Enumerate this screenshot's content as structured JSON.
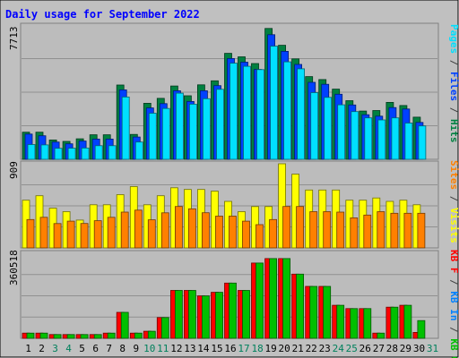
{
  "chart_data": {
    "type": "bar",
    "title": "Daily usage for September 2022",
    "categories": [
      "1",
      "2",
      "3",
      "4",
      "5",
      "6",
      "7",
      "8",
      "9",
      "10",
      "11",
      "12",
      "13",
      "14",
      "15",
      "16",
      "17",
      "18",
      "19",
      "20",
      "21",
      "22",
      "23",
      "24",
      "25",
      "26",
      "27",
      "28",
      "29",
      "30",
      "31"
    ],
    "weekend_days": [
      "3",
      "4",
      "10",
      "11",
      "17",
      "18",
      "24",
      "25",
      "31"
    ],
    "panels": {
      "top": {
        "max_label": "7713",
        "ylim": [
          0,
          7713
        ],
        "series": [
          {
            "name": "Hits",
            "color": "#008040",
            "values": [
              1560,
              1560,
              1110,
              1030,
              1180,
              1410,
              1410,
              4270,
              1430,
              3220,
              3500,
              4210,
              3650,
              4280,
              4510,
              6090,
              5890,
              5500,
              7520,
              6550,
              5770,
              4750,
              4580,
              4030,
              3370,
              2770,
              2800,
              3270,
              3090,
              2420,
              0
            ]
          },
          {
            "name": "Files",
            "color": "#0040ff",
            "values": [
              1450,
              1350,
              990,
              890,
              1050,
              1160,
              1160,
              3990,
              1280,
              2950,
              3200,
              3940,
              3320,
              3940,
              4230,
              5790,
              5580,
              5160,
              7160,
              6200,
              5450,
              4420,
              4310,
              3740,
              3120,
              2560,
              2480,
              2970,
              2890,
              2120,
              0
            ]
          },
          {
            "name": "Pages",
            "color": "#00e0ff",
            "values": [
              850,
              830,
              630,
              640,
              650,
              780,
              780,
              3580,
              990,
              2650,
              2920,
              3800,
              3170,
              3480,
              4020,
              5520,
              5340,
              5150,
              6500,
              5600,
              5200,
              3830,
              3560,
              3130,
              2740,
              2380,
              2260,
              2380,
              2080,
              1920,
              0
            ]
          }
        ]
      },
      "middle": {
        "max_label": "909",
        "ylim": [
          0,
          909
        ],
        "series": [
          {
            "name": "Visits",
            "color": "#ffff00",
            "values": [
              515,
              564,
              429,
              392,
              301,
              466,
              466,
              575,
              662,
              466,
              564,
              650,
              631,
              631,
              613,
              503,
              392,
              447,
              447,
              909,
              797,
              626,
              626,
              626,
              515,
              515,
              540,
              503,
              515,
              466,
              0
            ]
          },
          {
            "name": "Sites",
            "color": "#ff8000",
            "values": [
              307,
              331,
              263,
              289,
              264,
              294,
              331,
              387,
              408,
              304,
              379,
              448,
              423,
              380,
              343,
              343,
              289,
              251,
              307,
              448,
              448,
              392,
              392,
              387,
              325,
              355,
              392,
              374,
              374,
              374,
              0
            ]
          }
        ]
      },
      "bottom": {
        "max_label": "360518",
        "ylim": [
          0,
          360518
        ],
        "series": [
          {
            "name": "KB F",
            "color": "#ff0000",
            "values": [
              22000,
              22000,
              16000,
              16000,
              16000,
              16000,
              22000,
              110000,
              22000,
              30000,
              88000,
              203000,
              203000,
              180000,
              195000,
              234000,
              203000,
              319000,
              338000,
              338000,
              272000,
              220000,
              220000,
              140000,
              126000,
              126000,
              22000,
              132000,
              140000,
              25000,
              0
            ]
          },
          {
            "name": "KB In",
            "color": "#0080ff",
            "values": [
              0,
              0,
              0,
              0,
              0,
              0,
              0,
              0,
              0,
              0,
              0,
              0,
              0,
              0,
              0,
              0,
              0,
              0,
              0,
              0,
              0,
              0,
              0,
              0,
              0,
              0,
              0,
              0,
              0,
              0,
              0
            ]
          },
          {
            "name": "KB Out",
            "color": "#00c000",
            "values": [
              22000,
              22000,
              16000,
              16000,
              16000,
              16000,
              22000,
              110000,
              22000,
              30000,
              88000,
              203000,
              203000,
              180000,
              195000,
              234000,
              203000,
              319000,
              338000,
              338000,
              272000,
              220000,
              220000,
              140000,
              126000,
              126000,
              22000,
              132000,
              140000,
              75000,
              0
            ]
          }
        ]
      }
    },
    "legends": {
      "top": [
        {
          "text": "Pages",
          "color": "#00e0ff"
        },
        {
          "text": " / ",
          "color": "#404040"
        },
        {
          "text": "Files",
          "color": "#0040ff"
        },
        {
          "text": " / ",
          "color": "#404040"
        },
        {
          "text": "Hits",
          "color": "#008040"
        }
      ],
      "middle": [
        {
          "text": "Sites",
          "color": "#ff8000"
        },
        {
          "text": " / ",
          "color": "#404040"
        },
        {
          "text": "Visits",
          "color": "#ffff00"
        }
      ],
      "bottom": [
        {
          "text": "KB F",
          "color": "#ff0000"
        },
        {
          "text": " / ",
          "color": "#404040"
        },
        {
          "text": "KB In",
          "color": "#0080ff"
        },
        {
          "text": " / ",
          "color": "#404040"
        },
        {
          "text": "KB Out",
          "color": "#00c000"
        }
      ]
    },
    "colors": {
      "frame_bg": "#c0c0c0",
      "plot_bg": "#bcbcbc",
      "title": "#0000ff",
      "label": "#000000",
      "weekday": "#000000",
      "weekend": "#00805c",
      "grid": "#909090"
    }
  }
}
